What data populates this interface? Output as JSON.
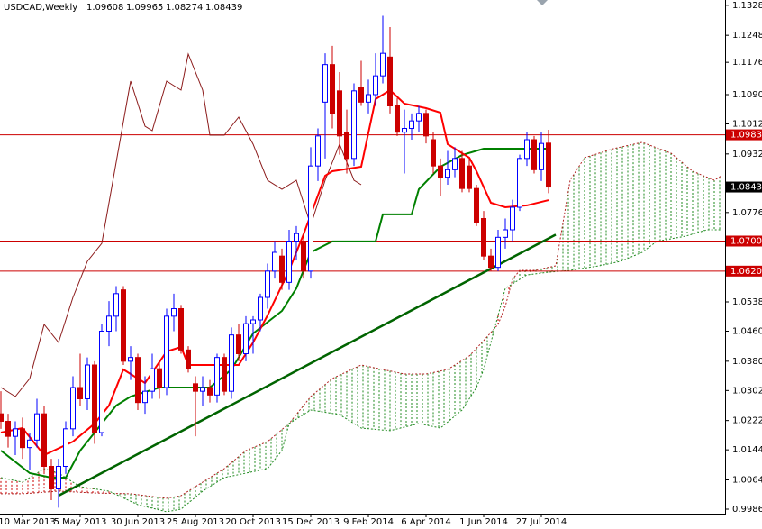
{
  "chart_data": {
    "type": "candlestick",
    "title": "USDCAD,Weekly",
    "xlim": [
      -3.125,
      97.5
    ],
    "ylim": [
      0.9974,
      1.1342
    ],
    "up_color": "#0000ff",
    "down_color": "#cc0000",
    "yticks": [
      {
        "value": 1.1328,
        "label": "1.13280"
      },
      {
        "value": 1.1248,
        "label": "1.12480"
      },
      {
        "value": 1.1176,
        "label": "1.11760"
      },
      {
        "value": 1.109,
        "label": "1.10900"
      },
      {
        "value": 1.1012,
        "label": "1.10120"
      },
      {
        "value": 1.0932,
        "label": "1.09320"
      },
      {
        "value": 1.0776,
        "label": "1.07760"
      },
      {
        "value": 1.0538,
        "label": "1.05380"
      },
      {
        "value": 1.046,
        "label": "1.04600"
      },
      {
        "value": 1.038,
        "label": "1.03800"
      },
      {
        "value": 1.0302,
        "label": "1.03020"
      },
      {
        "value": 1.0222,
        "label": "1.02220"
      },
      {
        "value": 1.0144,
        "label": "1.01440"
      },
      {
        "value": 1.0064,
        "label": "1.00640"
      },
      {
        "value": 0.9986,
        "label": "0.99860"
      }
    ],
    "xticks": [
      {
        "value": 0,
        "label": "10 Mar 2013"
      },
      {
        "value": 8,
        "label": "5 May 2013"
      },
      {
        "value": 16,
        "label": "30 Jun 2013"
      },
      {
        "value": 24,
        "label": "25 Aug 2013"
      },
      {
        "value": 32,
        "label": "20 Oct 2013"
      },
      {
        "value": 40,
        "label": "15 Dec 2013"
      },
      {
        "value": 48,
        "label": "9 Feb 2014"
      },
      {
        "value": 56,
        "label": "6 Apr 2014"
      },
      {
        "value": 64,
        "label": "1 Jun 2014"
      },
      {
        "value": 72,
        "label": "27 Jul 2014"
      }
    ],
    "x": [
      -3,
      -2,
      -1,
      0,
      1,
      2,
      3,
      4,
      5,
      6,
      7,
      8,
      9,
      10,
      11,
      12,
      13,
      14,
      15,
      16,
      17,
      18,
      19,
      20,
      21,
      22,
      23,
      24,
      25,
      26,
      27,
      28,
      29,
      30,
      31,
      32,
      33,
      34,
      35,
      36,
      37,
      38,
      39,
      40,
      41,
      42,
      43,
      44,
      45,
      46,
      47,
      48,
      49,
      50,
      51,
      52,
      53,
      54,
      55,
      56,
      57,
      58,
      59,
      60,
      61,
      62,
      63,
      64,
      65,
      66,
      67,
      68,
      69,
      70,
      71,
      72,
      73
    ],
    "candles": [
      [
        1.024,
        1.03,
        1.02,
        1.022
      ],
      [
        1.022,
        1.024,
        1.015,
        1.018
      ],
      [
        1.018,
        1.022,
        1.013,
        1.02
      ],
      [
        1.02,
        1.023,
        1.012,
        1.015
      ],
      [
        1.015,
        1.019,
        1.009,
        1.017
      ],
      [
        1.017,
        1.028,
        1.015,
        1.024
      ],
      [
        1.024,
        1.026,
        1.008,
        1.01
      ],
      [
        1.01,
        1.012,
        1.001,
        1.004
      ],
      [
        1.004,
        1.012,
        0.999,
        1.01
      ],
      [
        1.01,
        1.022,
        1.008,
        1.02
      ],
      [
        1.02,
        1.034,
        1.018,
        1.031
      ],
      [
        1.031,
        1.04,
        1.026,
        1.028
      ],
      [
        1.028,
        1.039,
        1.025,
        1.037
      ],
      [
        1.037,
        1.038,
        1.016,
        1.019
      ],
      [
        1.019,
        1.048,
        1.018,
        1.046
      ],
      [
        1.046,
        1.054,
        1.042,
        1.05
      ],
      [
        1.05,
        1.058,
        1.046,
        1.056
      ],
      [
        1.057,
        1.058,
        1.037,
        1.038
      ],
      [
        1.038,
        1.042,
        1.033,
        1.039
      ],
      [
        1.039,
        1.04,
        1.025,
        1.027
      ],
      [
        1.027,
        1.034,
        1.024,
        1.03
      ],
      [
        1.03,
        1.04,
        1.028,
        1.036
      ],
      [
        1.036,
        1.038,
        1.028,
        1.031
      ],
      [
        1.031,
        1.052,
        1.029,
        1.05
      ],
      [
        1.05,
        1.056,
        1.046,
        1.052
      ],
      [
        1.052,
        1.053,
        1.04,
        1.041
      ],
      [
        1.041,
        1.042,
        1.035,
        1.036
      ],
      [
        1.032,
        1.034,
        1.018,
        1.03
      ],
      [
        1.03,
        1.034,
        1.026,
        1.031
      ],
      [
        1.031,
        1.033,
        1.027,
        1.029
      ],
      [
        1.029,
        1.04,
        1.027,
        1.039
      ],
      [
        1.039,
        1.04,
        1.029,
        1.03
      ],
      [
        1.03,
        1.047,
        1.028,
        1.045
      ],
      [
        1.045,
        1.048,
        1.038,
        1.04
      ],
      [
        1.04,
        1.05,
        1.038,
        1.048
      ],
      [
        1.048,
        1.05,
        1.04,
        1.049
      ],
      [
        1.049,
        1.056,
        1.046,
        1.055
      ],
      [
        1.055,
        1.064,
        1.052,
        1.062
      ],
      [
        1.062,
        1.07,
        1.06,
        1.067
      ],
      [
        1.066,
        1.068,
        1.057,
        1.059
      ],
      [
        1.059,
        1.073,
        1.057,
        1.07
      ],
      [
        1.07,
        1.074,
        1.065,
        1.072
      ],
      [
        1.07,
        1.072,
        1.06,
        1.062
      ],
      [
        1.062,
        1.095,
        1.06,
        1.09
      ],
      [
        1.09,
        1.1,
        1.086,
        1.098
      ],
      [
        1.107,
        1.12,
        1.092,
        1.117
      ],
      [
        1.117,
        1.122,
        1.1,
        1.104
      ],
      [
        1.11,
        1.115,
        1.093,
        1.098
      ],
      [
        1.099,
        1.105,
        1.088,
        1.092
      ],
      [
        1.092,
        1.112,
        1.09,
        1.11
      ],
      [
        1.111,
        1.118,
        1.106,
        1.107
      ],
      [
        1.107,
        1.113,
        1.104,
        1.109
      ],
      [
        1.109,
        1.12,
        1.106,
        1.114
      ],
      [
        1.114,
        1.13,
        1.112,
        1.12
      ],
      [
        1.119,
        1.127,
        1.104,
        1.106
      ],
      [
        1.106,
        1.108,
        1.098,
        1.099
      ],
      [
        1.099,
        1.105,
        1.088,
        1.1
      ],
      [
        1.1,
        1.104,
        1.097,
        1.102
      ],
      [
        1.102,
        1.106,
        1.099,
        1.104
      ],
      [
        1.104,
        1.105,
        1.096,
        1.098
      ],
      [
        1.097,
        1.099,
        1.088,
        1.09
      ],
      [
        1.09,
        1.092,
        1.082,
        1.087
      ],
      [
        1.087,
        1.094,
        1.085,
        1.089
      ],
      [
        1.089,
        1.095,
        1.087,
        1.092
      ],
      [
        1.092,
        1.094,
        1.083,
        1.084
      ],
      [
        1.09,
        1.092,
        1.083,
        1.084
      ],
      [
        1.084,
        1.085,
        1.074,
        1.075
      ],
      [
        1.076,
        1.078,
        1.065,
        1.066
      ],
      [
        1.066,
        1.068,
        1.062,
        1.063
      ],
      [
        1.063,
        1.073,
        1.062,
        1.071
      ],
      [
        1.071,
        1.076,
        1.068,
        1.073
      ],
      [
        1.073,
        1.081,
        1.07,
        1.079
      ],
      [
        1.079,
        1.093,
        1.078,
        1.092
      ],
      [
        1.092,
        1.099,
        1.09,
        1.097
      ],
      [
        1.097,
        1.098,
        1.088,
        1.089
      ],
      [
        1.089,
        1.099,
        1.086,
        1.096
      ],
      [
        1.09608,
        1.09965,
        1.08274,
        1.08439
      ]
    ],
    "cloud": [
      {
        "color": "#b22222",
        "x": [
          -3,
          0,
          5,
          10,
          15,
          20,
          22,
          25,
          28,
          31,
          34,
          37,
          40,
          43,
          47,
          50,
          53,
          56,
          59,
          62,
          64,
          66,
          67,
          68,
          69,
          71,
          74,
          76,
          78,
          82,
          86,
          90,
          93,
          96,
          97
        ],
        "values": [
          1.0027,
          1.0027,
          1.0034,
          1.0029,
          1.0027,
          1.0015,
          1.0022,
          1.0058,
          1.0094,
          1.0142,
          1.0166,
          1.0214,
          1.0286,
          1.0334,
          1.037,
          1.0358,
          1.0346,
          1.0346,
          1.0358,
          1.0394,
          1.0435,
          1.0478,
          1.0526,
          1.0598,
          1.0622,
          1.0622,
          1.0634,
          1.0862,
          1.0922,
          1.0946,
          1.0963,
          1.0934,
          1.0886,
          1.0862,
          1.0874
        ]
      },
      {
        "color": "#228b22",
        "x": [
          -3,
          0,
          3,
          5,
          8,
          12,
          16,
          20,
          22,
          25,
          28,
          31,
          34,
          36,
          37,
          40,
          44,
          47,
          51,
          55,
          58,
          61,
          63,
          64,
          66,
          67,
          68,
          70,
          73,
          76,
          80,
          83,
          86,
          88,
          92,
          95,
          97
        ],
        "values": [
          1.007,
          1.0058,
          1.0094,
          1.0082,
          1.0046,
          1.0034,
          0.9998,
          0.9979,
          0.9986,
          1.0034,
          1.007,
          1.0082,
          1.0094,
          1.0142,
          1.0214,
          1.025,
          1.0238,
          1.0202,
          1.0195,
          1.0214,
          1.0202,
          1.025,
          1.031,
          1.0358,
          1.0502,
          1.0574,
          1.0586,
          1.061,
          1.0617,
          1.0622,
          1.0634,
          1.0646,
          1.067,
          1.0699,
          1.0713,
          1.073,
          1.073
        ]
      }
    ],
    "lines": [
      {
        "color": "#8b1a1a",
        "width": 1,
        "x": [
          -3,
          -1,
          1,
          3,
          5,
          7,
          9,
          11,
          13,
          15,
          17,
          18,
          20,
          22,
          23,
          25,
          26,
          28,
          30,
          32,
          34,
          36,
          38,
          40,
          42,
          44,
          46,
          47
        ],
        "values": [
          1.031,
          1.0286,
          1.0334,
          1.0478,
          1.043,
          1.055,
          1.0646,
          1.0694,
          1.091,
          1.1126,
          1.1006,
          1.0994,
          1.1126,
          1.1102,
          1.1198,
          1.1102,
          1.0982,
          1.0982,
          1.103,
          1.0958,
          1.0862,
          1.0838,
          1.0862,
          1.0742,
          1.0862,
          1.0958,
          1.0862,
          1.085
        ]
      },
      {
        "color": "#008000",
        "width": 2,
        "x": [
          -3,
          1,
          4,
          6,
          8,
          11,
          13,
          15,
          19,
          26,
          29,
          32,
          36,
          38,
          40,
          43,
          49,
          50,
          54,
          55,
          58,
          61,
          64,
          67,
          73
        ],
        "values": [
          1.0142,
          1.0082,
          1.007,
          1.007,
          1.0142,
          1.0214,
          1.0262,
          1.0286,
          1.031,
          1.031,
          1.0358,
          1.0454,
          1.0514,
          1.0574,
          1.067,
          1.0699,
          1.0699,
          1.0771,
          1.0771,
          1.0838,
          1.0898,
          1.0929,
          1.0946,
          1.0946,
          1.0946
        ]
      },
      {
        "color": "#ff0000",
        "width": 2,
        "x": [
          -3,
          0,
          3,
          7,
          10,
          12,
          14,
          17,
          20,
          22,
          23,
          27,
          30,
          32,
          34,
          37,
          39,
          42,
          43,
          47,
          49,
          51,
          53,
          56,
          58,
          59,
          62,
          63,
          65,
          67,
          70,
          73
        ],
        "values": [
          1.019,
          1.0202,
          1.013,
          1.0166,
          1.0214,
          1.0262,
          1.0358,
          1.0322,
          1.0406,
          1.0418,
          1.037,
          1.037,
          1.037,
          1.043,
          1.0502,
          1.0622,
          1.0718,
          1.0874,
          1.0886,
          1.0898,
          1.1078,
          1.1102,
          1.1066,
          1.1054,
          1.1042,
          1.0958,
          1.0922,
          1.0886,
          1.0802,
          1.079,
          1.0795,
          1.0809
        ]
      },
      {
        "color": "#006400",
        "width": 2.5,
        "x": [
          5,
          74
        ],
        "values": [
          1.0022,
          1.0717
        ]
      }
    ],
    "levels": [
      {
        "value": 1.0983,
        "label": "1.09830",
        "color": "#cc0000"
      },
      {
        "value": 1.07,
        "label": "1.07000",
        "color": "#cc0000"
      },
      {
        "value": 1.062,
        "label": "1.06200",
        "color": "#cc0000"
      }
    ],
    "price_line": 1.08439,
    "price_color": "#7a8a9a"
  }
}
